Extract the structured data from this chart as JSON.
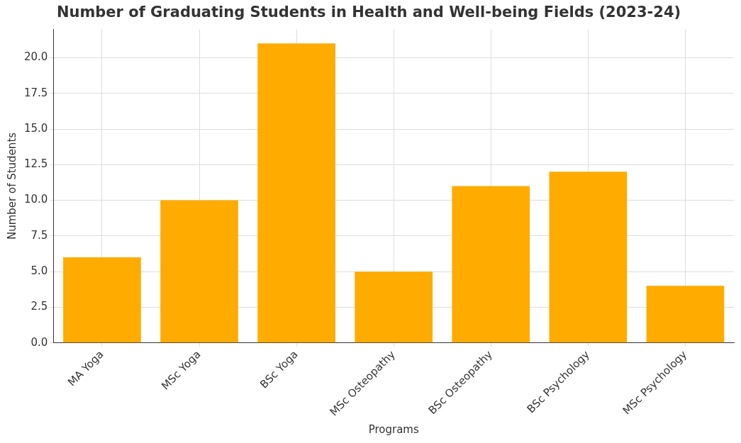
{
  "chart_data": {
    "type": "bar",
    "title": "Number of Graduating Students in Health and Well-being Fields (2023-24)",
    "xlabel": "Programs",
    "ylabel": "Number of Students",
    "categories": [
      "MA Yoga",
      "MSc Yoga",
      "BSc Yoga",
      "MSc Osteopathy",
      "BSc Osteopathy",
      "BSc Psychology",
      "MSc Psychology"
    ],
    "values": [
      6,
      10,
      21,
      5,
      11,
      12,
      4
    ],
    "color": "#ffab00",
    "ylim": [
      0,
      22
    ],
    "yticks": [
      {
        "value": 0,
        "label": "0.0"
      },
      {
        "value": 2.5,
        "label": "2.5"
      },
      {
        "value": 5,
        "label": "5.0"
      },
      {
        "value": 7.5,
        "label": "7.5"
      },
      {
        "value": 10,
        "label": "10.0"
      },
      {
        "value": 12.5,
        "label": "12.5"
      },
      {
        "value": 15,
        "label": "15.0"
      },
      {
        "value": 17.5,
        "label": "17.5"
      },
      {
        "value": 20,
        "label": "20.0"
      }
    ],
    "grid": true
  }
}
